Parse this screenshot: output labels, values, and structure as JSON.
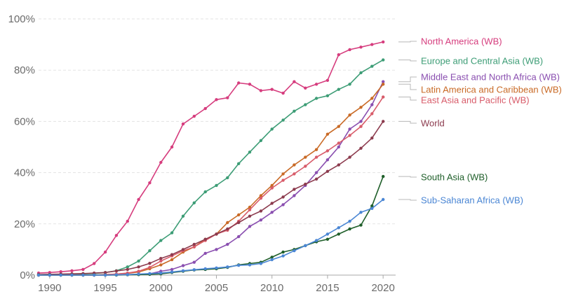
{
  "chart_data": {
    "type": "line",
    "title": "",
    "xlabel": "",
    "ylabel": "",
    "xlim": [
      1989,
      2021
    ],
    "ylim": [
      0,
      100
    ],
    "x_ticks": [
      1990,
      1995,
      2000,
      2005,
      2010,
      2015,
      2020
    ],
    "x_tick_labels": [
      "1990",
      "1995",
      "2000",
      "2005",
      "2010",
      "2015",
      "2020"
    ],
    "y_ticks": [
      0,
      20,
      40,
      60,
      80,
      100
    ],
    "y_tick_labels": [
      "0%",
      "20%",
      "40%",
      "60%",
      "80%",
      "100%"
    ],
    "grid": true,
    "legend": "inline-right",
    "x": [
      1989,
      1990,
      1991,
      1992,
      1993,
      1994,
      1995,
      1996,
      1997,
      1998,
      1999,
      2000,
      2001,
      2002,
      2003,
      2004,
      2005,
      2006,
      2007,
      2008,
      2009,
      2010,
      2011,
      2012,
      2013,
      2014,
      2015,
      2016,
      2017,
      2018,
      2019,
      2020
    ],
    "series": [
      {
        "name": "North America (WB)",
        "color": "#d63d7e",
        "values": [
          0.8,
          1.0,
          1.3,
          1.7,
          2.2,
          4.5,
          9,
          15.5,
          21,
          29.5,
          36,
          44,
          50,
          59,
          62,
          65,
          68.5,
          69.2,
          75,
          74.5,
          72,
          72.5,
          71,
          75.5,
          73,
          74.5,
          76,
          86,
          88,
          89,
          90,
          91
        ]
      },
      {
        "name": "Europe and Central Asia (WB)",
        "color": "#3d9d76",
        "values": [
          0.2,
          0.3,
          0.3,
          0.4,
          0.5,
          0.6,
          1,
          1.7,
          3.2,
          5.5,
          9.5,
          13.5,
          16.5,
          23,
          28.2,
          32.5,
          35,
          38,
          43.5,
          48,
          52.5,
          57,
          60.5,
          64,
          66.5,
          69,
          70,
          72.5,
          74.5,
          79,
          81.5,
          84
        ]
      },
      {
        "name": "Middle East and North Africa (WB)",
        "color": "#8a4fb0",
        "values": [
          0,
          0,
          0,
          0,
          0,
          0,
          0,
          0.1,
          0.2,
          0.3,
          0.5,
          1.5,
          2.2,
          3.7,
          5,
          8.5,
          10,
          12,
          15,
          19,
          21.5,
          24.5,
          27.5,
          31,
          35,
          40,
          45,
          50,
          57,
          60,
          66.5,
          75.5
        ]
      },
      {
        "name": "Latin America and Caribbean (WB)",
        "color": "#c96a26",
        "values": [
          0,
          0,
          0,
          0,
          0,
          0,
          0.2,
          0.4,
          0.7,
          1.2,
          2.5,
          4,
          6,
          9,
          11,
          14,
          16,
          20.5,
          23.5,
          26.5,
          31,
          35,
          39.5,
          43,
          46,
          49,
          55,
          58,
          62.5,
          65.5,
          69,
          74.5
        ]
      },
      {
        "name": "East Asia and Pacific (WB)",
        "color": "#d85c6a",
        "values": [
          0,
          0,
          0,
          0,
          0,
          0,
          0.2,
          0.4,
          0.8,
          1.5,
          3,
          5.5,
          7.5,
          9.5,
          11,
          13.5,
          16,
          17.5,
          21,
          25.5,
          30,
          34,
          37,
          39.5,
          42.5,
          46,
          48.5,
          51.5,
          54.5,
          58,
          63,
          69.5
        ]
      },
      {
        "name": "World",
        "color": "#8c3b4e",
        "values": [
          0.2,
          0.3,
          0.4,
          0.5,
          0.6,
          0.8,
          1,
          1.6,
          2.2,
          3.2,
          4.6,
          6.5,
          8,
          10,
          12,
          14,
          16,
          18,
          20.5,
          23,
          25,
          28,
          30.5,
          33.5,
          35.5,
          37.5,
          40.5,
          43,
          46,
          49.5,
          53.5,
          60
        ]
      },
      {
        "name": "South Asia (WB)",
        "color": "#1f5f2a",
        "values": [
          0,
          0,
          0,
          0,
          0,
          0,
          0,
          0,
          0.1,
          0.2,
          0.3,
          0.5,
          1,
          1.5,
          2,
          2.2,
          2.5,
          3,
          4,
          4.5,
          5,
          7,
          9,
          10,
          11.5,
          13,
          14,
          16,
          18,
          19.5,
          27,
          38.5
        ]
      },
      {
        "name": "Sub-Saharan Africa (WB)",
        "color": "#4a86d4",
        "values": [
          0,
          0,
          0,
          0,
          0,
          0,
          0,
          0.1,
          0.2,
          0.4,
          0.6,
          0.8,
          1.2,
          1.7,
          2.1,
          2.5,
          2.8,
          3.2,
          3.8,
          4,
          4.5,
          6,
          7.5,
          9.5,
          11.5,
          13.5,
          16,
          18.5,
          21,
          24.5,
          26,
          29.5
        ]
      }
    ]
  }
}
